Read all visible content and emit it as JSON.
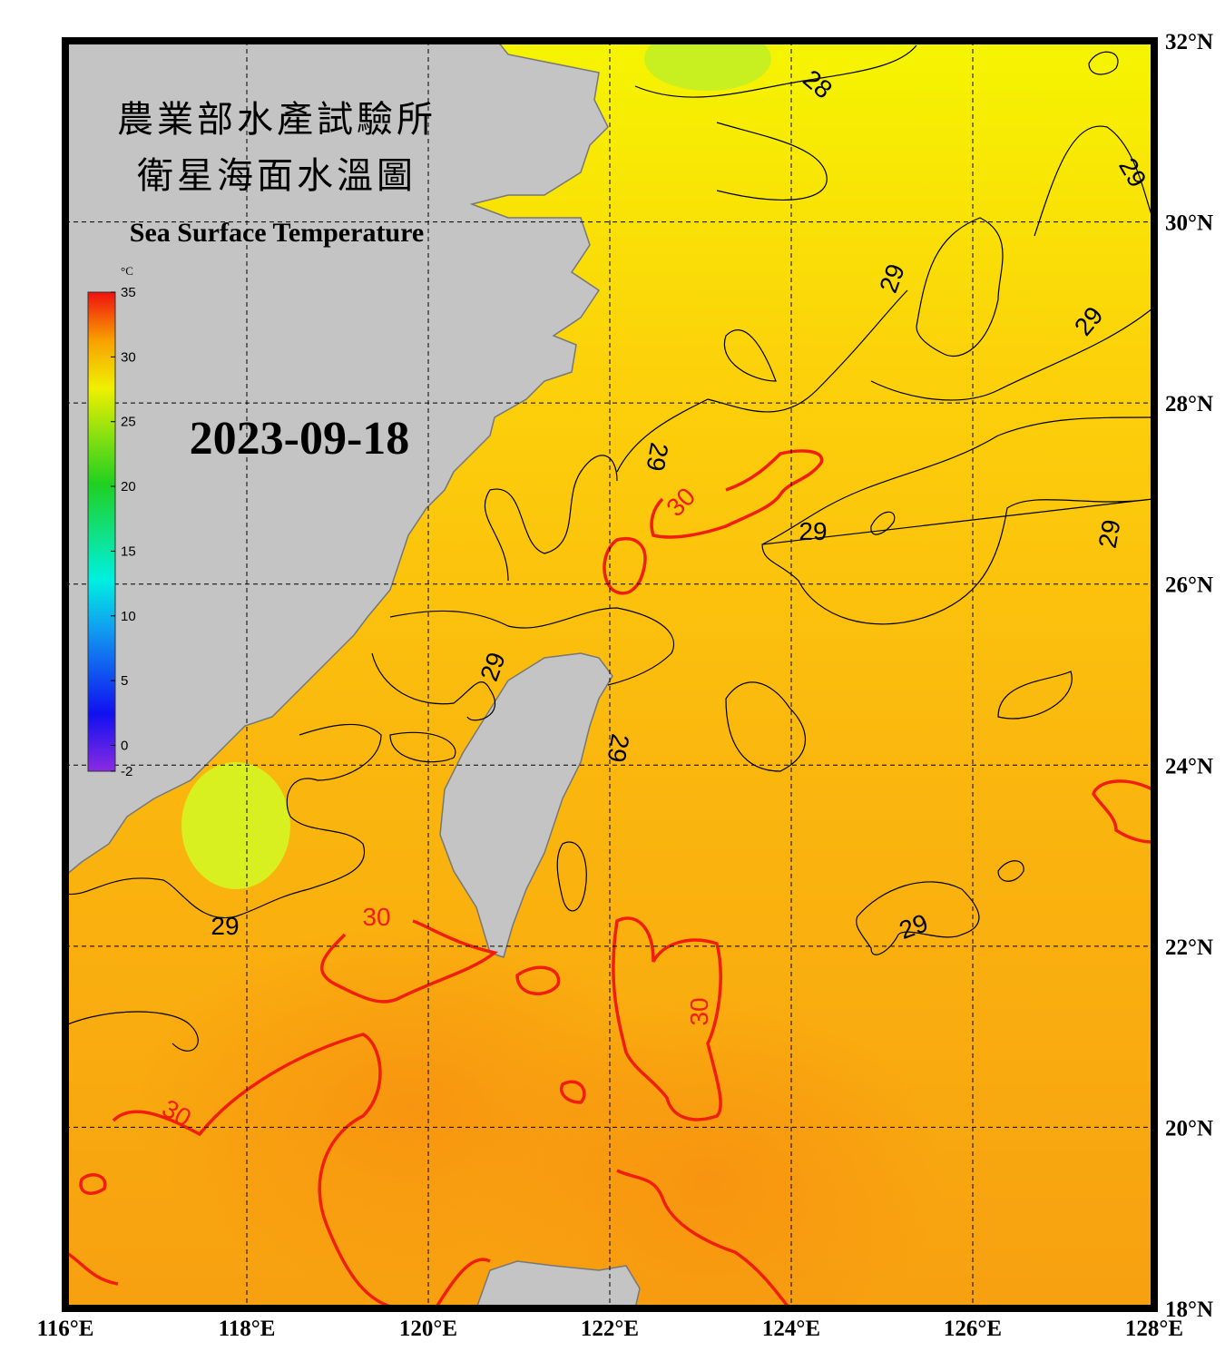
{
  "header": {
    "title_zh_1": "農業部水產試驗所",
    "title_zh_2": "衛星海面水溫圖",
    "title_en": "Sea Surface Temperature"
  },
  "date": "2023-09-18",
  "colorbar": {
    "unit": "°C",
    "range": [
      -2,
      35
    ],
    "ticks": [
      35,
      30,
      25,
      20,
      15,
      10,
      5,
      0,
      -2
    ]
  },
  "map": {
    "xlim": [
      116,
      128
    ],
    "ylim": [
      18,
      32
    ],
    "xticks": [
      {
        "value": 116,
        "label": "116°E"
      },
      {
        "value": 118,
        "label": "118°E"
      },
      {
        "value": 120,
        "label": "120°E"
      },
      {
        "value": 122,
        "label": "122°E"
      },
      {
        "value": 124,
        "label": "124°E"
      },
      {
        "value": 126,
        "label": "126°E"
      },
      {
        "value": 128,
        "label": "128°E"
      }
    ],
    "yticks": [
      {
        "value": 32,
        "label": "32°N"
      },
      {
        "value": 30,
        "label": "30°N"
      },
      {
        "value": 28,
        "label": "28°N"
      },
      {
        "value": 26,
        "label": "26°N"
      },
      {
        "value": 24,
        "label": "24°N"
      },
      {
        "value": 22,
        "label": "22°N"
      },
      {
        "value": 20,
        "label": "20°N"
      },
      {
        "value": 18,
        "label": "18°N"
      }
    ]
  },
  "contour_labels": [
    "28",
    "29",
    "29",
    "29",
    "29",
    "30",
    "29",
    "29",
    "29",
    "29",
    "29",
    "30",
    "29",
    "30",
    "30"
  ]
}
